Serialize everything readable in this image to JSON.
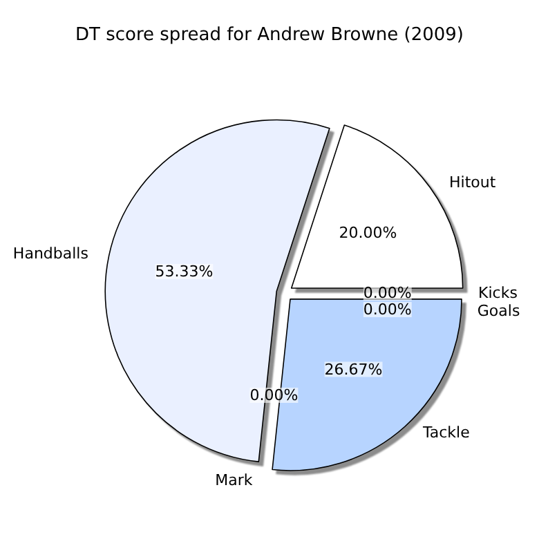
{
  "chart_data": {
    "type": "pie",
    "title": "DT score spread for Andrew Browne (2009)",
    "categories": [
      "Hitout",
      "Handballs",
      "Mark",
      "Tackle",
      "Kicks",
      "Goals"
    ],
    "values": [
      20.0,
      53.33,
      0.0,
      26.67,
      0.0,
      0.0
    ],
    "colors": [
      "#ffffff",
      "#eaf0ff",
      "#ffffff",
      "#b7d4ff",
      "#ffffff",
      "#ffffff"
    ],
    "value_labels": [
      "20.00%",
      "53.33%",
      "0.00%",
      "26.67%",
      "0.00%",
      "0.00%"
    ],
    "legend": false
  }
}
